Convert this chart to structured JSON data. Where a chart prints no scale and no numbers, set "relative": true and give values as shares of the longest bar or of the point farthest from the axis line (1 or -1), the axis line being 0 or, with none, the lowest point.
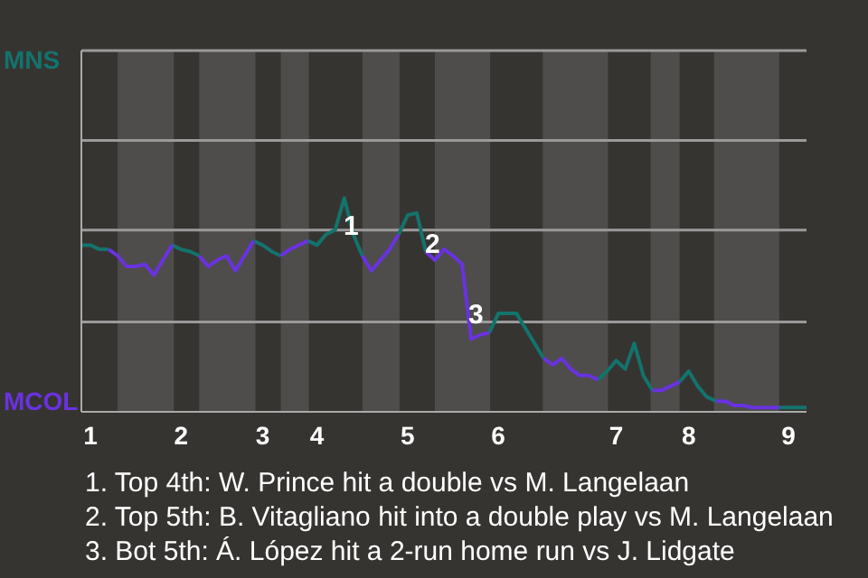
{
  "chart_data": {
    "type": "line",
    "relative": true,
    "categories": [
      null,
      "1",
      null,
      null,
      null,
      null,
      null,
      null,
      null,
      null,
      null,
      "2",
      null,
      null,
      null,
      null,
      null,
      null,
      null,
      null,
      "3",
      null,
      null,
      null,
      null,
      null,
      "4",
      null,
      null,
      null,
      null,
      null,
      null,
      null,
      null,
      null,
      "5",
      null,
      null,
      null,
      null,
      null,
      null,
      null,
      null,
      null,
      "6",
      null,
      null,
      null,
      null,
      null,
      null,
      null,
      null,
      null,
      null,
      null,
      null,
      "7",
      null,
      null,
      null,
      null,
      null,
      null,
      null,
      "8",
      null,
      null,
      null,
      null,
      null,
      null,
      null,
      null,
      null,
      null,
      "9",
      null,
      null
    ],
    "ref_lines": [
      {
        "axis": "y",
        "value": 0.42,
        "color": "#9a9a9a"
      },
      {
        "axis": "y",
        "value": 0.85,
        "color": "#9a9a9a"
      },
      {
        "axis": "y",
        "value": 1.27,
        "color": "#9a9a9a"
      },
      {
        "axis": "y",
        "value": 1.69,
        "color": "#9a9a9a"
      }
    ],
    "annotations": [
      "MNS",
      "MCOL",
      "1",
      "2",
      "3",
      "1. Top 4th: W. Prince hit a double vs M. Langelaan",
      "2. Top 5th: B. Vitagliano hit into a double play vs M. Langelaan",
      "3. Bot 5th: Á. López hit a 2-run home run vs J. Lidgate"
    ],
    "series": [
      {
        "color": "#13736d",
        "values": [
          0.78,
          0.78,
          0.76,
          0.76,
          null,
          null,
          null,
          null,
          null,
          null,
          0.78,
          0.76,
          0.75,
          0.73,
          null,
          null,
          null,
          null,
          null,
          0.8,
          0.78,
          0.75,
          0.73,
          null,
          null,
          0.8,
          0.78,
          0.83,
          0.85,
          1,
          0.83,
          0.73,
          null,
          null,
          null,
          0.83,
          0.92,
          0.93,
          0.75,
          null,
          null,
          null,
          null,
          null,
          null,
          0.37,
          0.46,
          0.46,
          0.46,
          0.39,
          0.32,
          0.25,
          null,
          null,
          null,
          null,
          null,
          0.15,
          0.19,
          0.24,
          0.2,
          0.32,
          0.17,
          0.1,
          null,
          null,
          0.14,
          0.19,
          0.12,
          0.07,
          0.05,
          null,
          null,
          null,
          null,
          null,
          null,
          0.02,
          0.02,
          0.02,
          0.02
        ]
      },
      {
        "color": "#6a32e0",
        "values": [
          null,
          null,
          null,
          0.76,
          0.73,
          0.68,
          0.68,
          0.69,
          0.64,
          0.71,
          0.78,
          null,
          null,
          0.73,
          0.68,
          0.71,
          0.73,
          0.66,
          0.73,
          0.8,
          null,
          null,
          0.73,
          0.76,
          0.78,
          0.8,
          null,
          null,
          null,
          null,
          null,
          0.73,
          0.66,
          0.71,
          0.76,
          0.83,
          null,
          null,
          0.75,
          0.71,
          0.76,
          0.73,
          0.69,
          0.34,
          0.36,
          0.37,
          null,
          null,
          null,
          null,
          null,
          0.25,
          0.22,
          0.25,
          0.2,
          0.17,
          0.17,
          0.15,
          null,
          null,
          null,
          null,
          null,
          0.1,
          0.1,
          0.12,
          0.14,
          null,
          null,
          null,
          0.05,
          0.05,
          0.03,
          0.03,
          0.02,
          0.02,
          0.02,
          0.02,
          null,
          null,
          null
        ]
      }
    ]
  }
}
